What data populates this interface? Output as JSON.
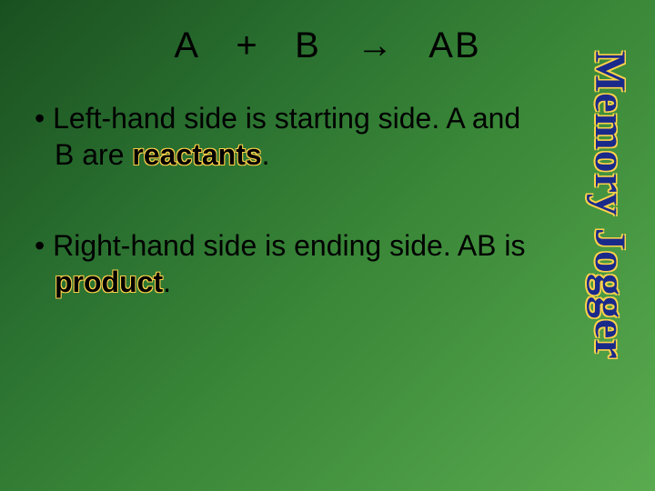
{
  "colors": {
    "background_gradient_start": "#1a5020",
    "background_gradient_mid1": "#2a7030",
    "background_gradient_mid2": "#3a8838",
    "background_gradient_end": "#5aaa50",
    "text_color": "#000000",
    "keyword_outline": "#ffd24a",
    "sidelabel_fill": "#1a2a8a",
    "sidelabel_outline": "#ffd24a"
  },
  "typography": {
    "equation_fontsize_pt": 30,
    "bullet_fontsize_pt": 24,
    "sidelabel_fontsize_pt": 36,
    "sidelabel_font": "Times New Roman"
  },
  "equation": {
    "lhs_a": "A",
    "plus": "+",
    "lhs_b": "B",
    "arrow": "→",
    "rhs": "AB"
  },
  "bullets": [
    {
      "before": "Left-hand side is starting side.  A and B are ",
      "keyword": "reactants",
      "after": "."
    },
    {
      "before": "Right-hand side is ending side.  AB is ",
      "keyword": "product",
      "after": "."
    }
  ],
  "sidelabel": "Memory Jogger"
}
